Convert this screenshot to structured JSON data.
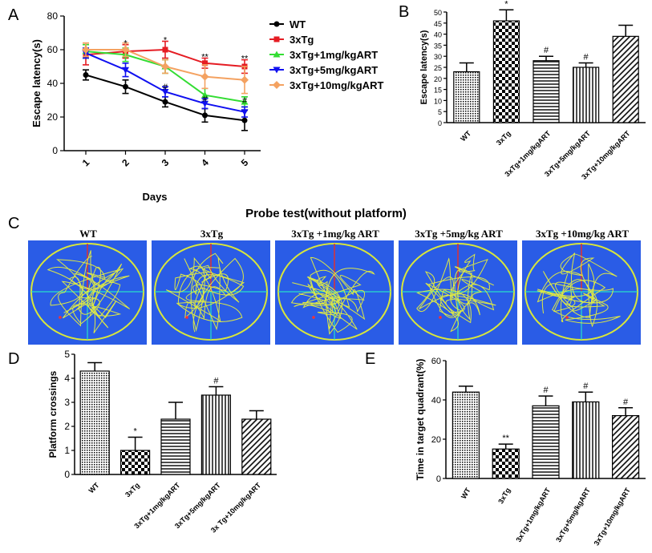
{
  "panels": {
    "a": "A",
    "b": "B",
    "c": "C",
    "d": "D",
    "e": "E"
  },
  "colors": {
    "WT": "#000000",
    "3xTg": "#e51c23",
    "1mg": "#33dd33",
    "5mg": "#1010f0",
    "10mg": "#f4a261",
    "maze_bg": "#2a5ce6",
    "maze_circle": "#d8e63a",
    "path": "#e8f03a",
    "axis_v": "#e03030",
    "axis_h": "#28e0c8"
  },
  "probe": {
    "title": "Probe test(without platform)",
    "labels": [
      "WT",
      "3xTg",
      "3xTg +1mg/kg ART",
      "3xTg +5mg/kg ART",
      "3xTg +10mg/kg ART"
    ]
  },
  "chart_data": [
    {
      "type": "line",
      "panel": "A",
      "xlabel": "Days",
      "ylabel": "Escape latency(s)",
      "x": [
        1,
        2,
        3,
        4,
        5
      ],
      "ylim": [
        0,
        80
      ],
      "yticks": [
        0,
        20,
        40,
        60,
        80
      ],
      "legend_position": "right",
      "series": [
        {
          "name": "WT",
          "values": [
            45,
            38,
            29,
            21,
            18
          ],
          "errors": [
            3,
            4,
            3,
            4,
            6
          ],
          "marker": "circle",
          "color": "#000000"
        },
        {
          "name": "3xTg",
          "values": [
            57,
            59,
            60,
            52,
            50
          ],
          "errors": [
            6,
            4,
            5,
            3,
            4
          ],
          "marker": "square",
          "color": "#e51c23"
        },
        {
          "name": "3xTg+1mg/kgART",
          "values": [
            59,
            57,
            50,
            33,
            29
          ],
          "errors": [
            4,
            4,
            4,
            4,
            3
          ],
          "marker": "triangle-up",
          "color": "#33dd33"
        },
        {
          "name": "3xTg+5mg/kgART",
          "values": [
            58,
            48,
            35,
            28,
            23
          ],
          "errors": [
            3,
            4,
            3,
            3,
            3
          ],
          "marker": "triangle-down",
          "color": "#1010f0"
        },
        {
          "name": "3xTg+10mg/kgART",
          "values": [
            60,
            60,
            50,
            44,
            42
          ],
          "errors": [
            4,
            4,
            4,
            7,
            8
          ],
          "marker": "diamond",
          "color": "#f4a261"
        }
      ],
      "annotations": [
        {
          "x": 2,
          "text": "*",
          "value": 64
        },
        {
          "x": 3,
          "text": "*",
          "value": 66
        },
        {
          "x": 3,
          "text": "#",
          "value": 38
        },
        {
          "x": 4,
          "text": "**",
          "value": 56
        },
        {
          "x": 4,
          "text": "#",
          "value": 31
        },
        {
          "x": 5,
          "text": "**",
          "value": 55
        },
        {
          "x": 5,
          "text": "#",
          "value": 30
        }
      ]
    },
    {
      "type": "bar",
      "panel": "B",
      "ylabel": "Escape latency(s)",
      "categories": [
        "WT",
        "3xTg",
        "3xTg+1mg/kgART",
        "3xTg+5mg/kgART",
        "3xTg+10mg/kgART"
      ],
      "values": [
        23,
        46,
        28,
        25,
        39
      ],
      "errors": [
        4,
        5,
        2,
        2,
        5
      ],
      "ylim": [
        0,
        50
      ],
      "yticks": [
        0,
        5,
        10,
        15,
        20,
        25,
        30,
        35,
        40,
        45,
        50
      ],
      "annotations": [
        "",
        "*",
        "#",
        "#",
        ""
      ]
    },
    {
      "type": "bar",
      "panel": "D",
      "ylabel": "Platform crossings",
      "categories": [
        "WT",
        "3xTg",
        "3xTg+1mg/kgART",
        "3xTg+5mg/kgART",
        "3x Tg+10mg/kgART"
      ],
      "values": [
        4.3,
        1.0,
        2.3,
        3.3,
        2.3
      ],
      "errors": [
        0.35,
        0.55,
        0.7,
        0.35,
        0.35
      ],
      "ylim": [
        0,
        5
      ],
      "yticks": [
        0,
        1,
        2,
        3,
        4,
        5
      ],
      "annotations": [
        "",
        "*",
        "",
        "#",
        ""
      ]
    },
    {
      "type": "bar",
      "panel": "E",
      "ylabel": "Time in target quadrant(%)",
      "categories": [
        "WT",
        "3xTg",
        "3xTg+1mg/kgART",
        "3xTg+5mg/kgART",
        "3xTg+10mg/kgART"
      ],
      "values": [
        44,
        15,
        37,
        39,
        32
      ],
      "errors": [
        3,
        2.5,
        5,
        5,
        4
      ],
      "ylim": [
        0,
        60
      ],
      "yticks": [
        0,
        20,
        40,
        60
      ],
      "annotations": [
        "",
        "**",
        "#",
        "#",
        "#"
      ]
    }
  ]
}
